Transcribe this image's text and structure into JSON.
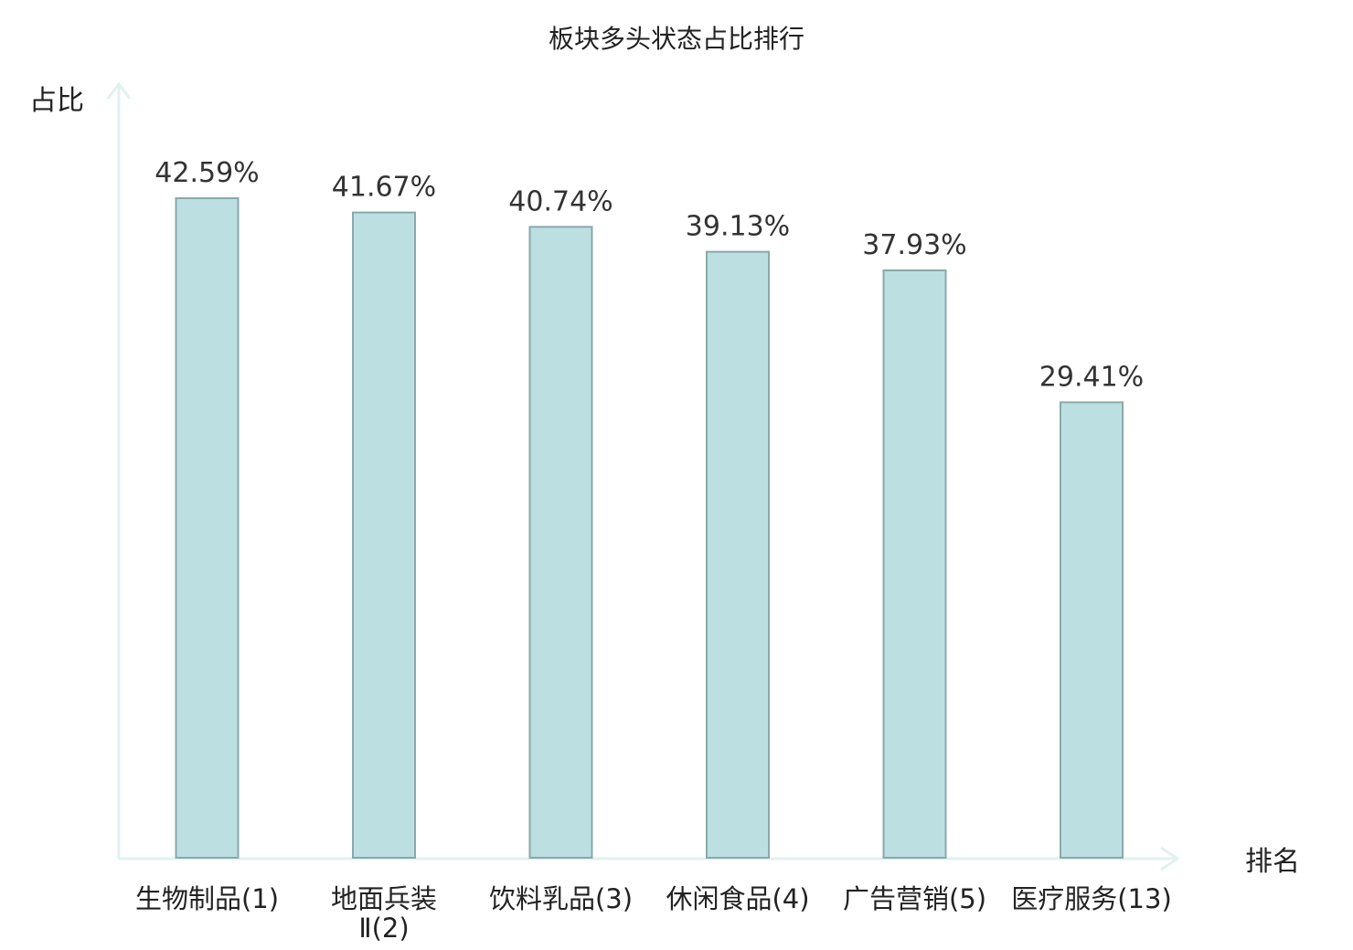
{
  "chart_data": {
    "type": "bar",
    "title": "板块多头状态占比排行",
    "ylabel": "占比",
    "xlabel": "排名",
    "categories": [
      "生物制品(1)",
      "地面兵装Ⅱ(2)",
      "饮料乳品(3)",
      "休闲食品(4)",
      "广告营销(5)",
      "医疗服务(13)"
    ],
    "values": [
      42.59,
      41.67,
      40.74,
      39.13,
      37.93,
      29.41
    ],
    "value_labels": [
      "42.59%",
      "41.67%",
      "40.74%",
      "39.13%",
      "37.93%",
      "29.41%"
    ],
    "ylim": [
      0,
      42.59
    ],
    "grid": false,
    "legend": "none",
    "highlight_index": 5,
    "colors": {
      "bar_fill": "#bce0e2",
      "bar_stroke": "#8aa8aa",
      "axis": "#e0f2ef",
      "text": "#222222",
      "highlight_text": "#e8262b"
    }
  }
}
